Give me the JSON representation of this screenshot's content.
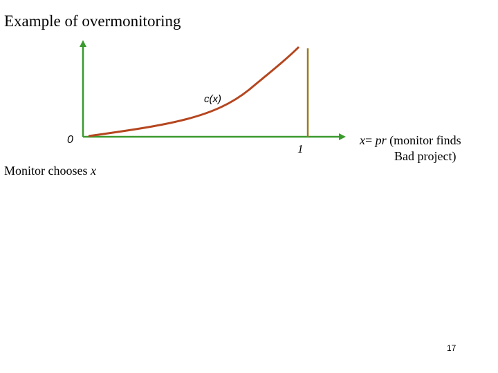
{
  "title": "Example of overmonitoring",
  "diagram": {
    "curve_label": "c(x)",
    "origin_label": "0",
    "endpoint_label": "1",
    "x_axis_label_parts": {
      "var": "x",
      "eq": "= ",
      "pr": "pr",
      "rest_line1": " (monitor finds",
      "line2": "Bad project)"
    },
    "caption_text": "Monitor chooses ",
    "caption_var": "x",
    "colors": {
      "axes": "#3a9a2e",
      "curve": "#b5461f",
      "vertical_line": "#9a7a1e"
    }
  },
  "page_number": "17"
}
